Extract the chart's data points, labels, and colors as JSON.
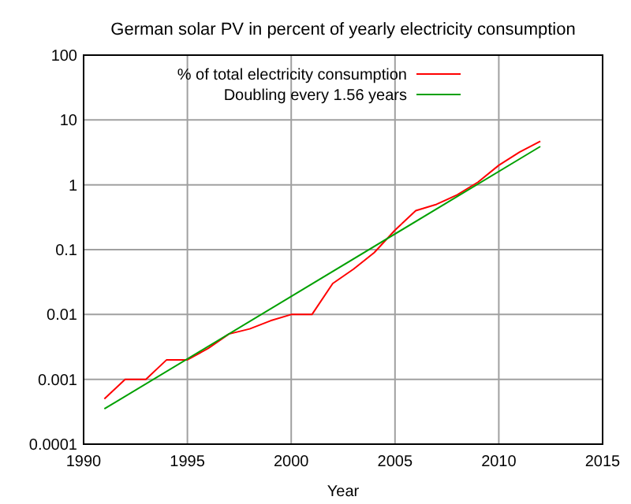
{
  "chart_data": {
    "type": "line",
    "title": "German solar PV in percent of yearly electricity consumption",
    "xlabel": "Year",
    "xlim": [
      1990,
      2015
    ],
    "xticks": [
      1990,
      1995,
      2000,
      2005,
      2010,
      2015
    ],
    "ylim": [
      0.0001,
      100
    ],
    "yticks": [
      0.0001,
      0.001,
      0.01,
      0.1,
      1,
      10,
      100
    ],
    "log": "y",
    "grid": true,
    "legend": "top right",
    "series": [
      {
        "name": "% of total electricity consumption",
        "color": "#ff0000",
        "x": [
          1991,
          1992,
          1993,
          1994,
          1995,
          1996,
          1997,
          1998,
          1999,
          2000,
          2001,
          2002,
          2003,
          2004,
          2005,
          2006,
          2007,
          2008,
          2009,
          2010,
          2011,
          2012
        ],
        "values": [
          0.0005,
          0.001,
          0.001,
          0.002,
          0.002,
          0.003,
          0.005,
          0.006,
          0.008,
          0.01,
          0.01,
          0.03,
          0.05,
          0.09,
          0.2,
          0.4,
          0.5,
          0.7,
          1.1,
          2,
          3.2,
          4.7
        ]
      },
      {
        "name": "Doubling every 1.56 years",
        "color": "#00a000",
        "x": [
          1991,
          2012
        ],
        "values": [
          0.00035,
          3.9
        ]
      }
    ]
  }
}
